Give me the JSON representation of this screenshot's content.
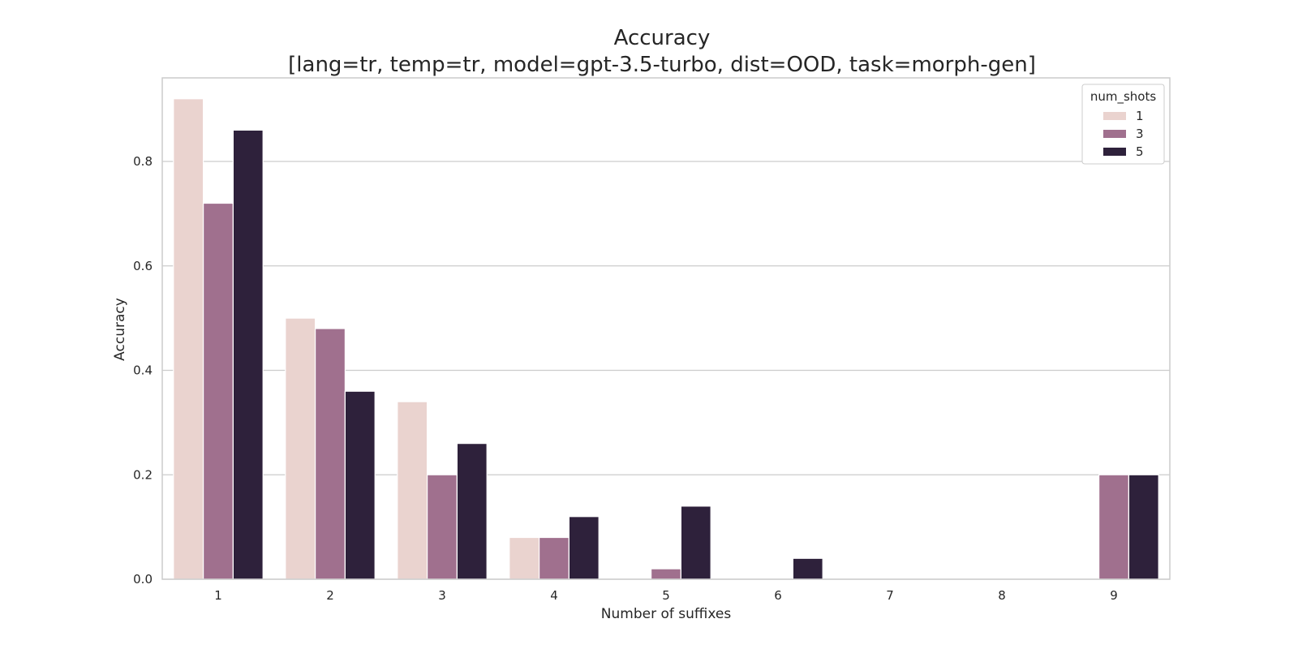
{
  "chart_data": {
    "type": "bar",
    "title": "Accuracy",
    "subtitle": "[lang=tr, temp=tr, model=gpt-3.5-turbo, dist=OOD, task=morph-gen]",
    "xlabel": "Number of suffixes",
    "ylabel": "Accuracy",
    "ylim": [
      0,
      0.96
    ],
    "yticks": [
      "0.0",
      "0.2",
      "0.4",
      "0.6",
      "0.8"
    ],
    "grid": true,
    "categories": [
      "1",
      "2",
      "3",
      "4",
      "5",
      "6",
      "7",
      "8",
      "9"
    ],
    "legend": {
      "title": "num_shots",
      "placement": "top-right"
    },
    "series": [
      {
        "name": "1",
        "color": "#ead3cf",
        "values": [
          0.92,
          0.5,
          0.34,
          0.08,
          0.0,
          0.0,
          0.0,
          0.0,
          0.0
        ]
      },
      {
        "name": "3",
        "color": "#a0708e",
        "values": [
          0.72,
          0.48,
          0.2,
          0.08,
          0.02,
          0.0,
          0.0,
          0.0,
          0.2
        ]
      },
      {
        "name": "5",
        "color": "#2e213b",
        "values": [
          0.86,
          0.36,
          0.26,
          0.12,
          0.14,
          0.04,
          0.0,
          0.0,
          0.2
        ]
      }
    ]
  }
}
